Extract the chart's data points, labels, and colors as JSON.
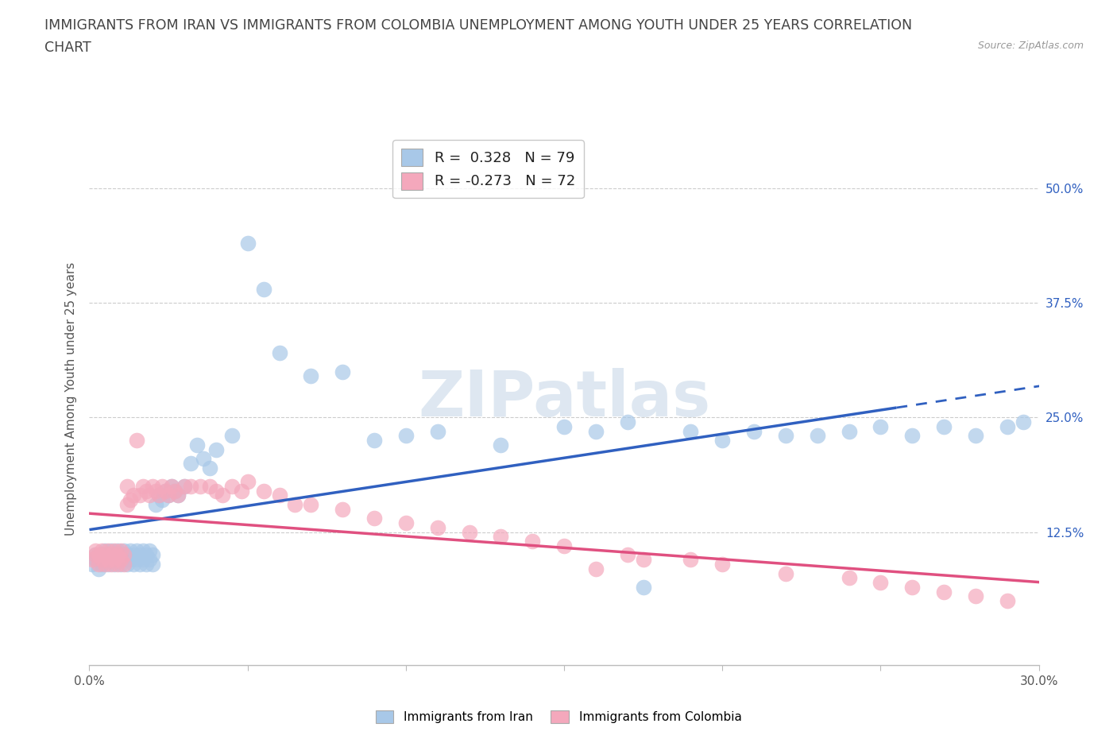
{
  "title_line1": "IMMIGRANTS FROM IRAN VS IMMIGRANTS FROM COLOMBIA UNEMPLOYMENT AMONG YOUTH UNDER 25 YEARS CORRELATION",
  "title_line2": "CHART",
  "source": "Source: ZipAtlas.com",
  "ylabel": "Unemployment Among Youth under 25 years",
  "yticks": [
    "12.5%",
    "25.0%",
    "37.5%",
    "50.0%"
  ],
  "ytick_vals": [
    0.125,
    0.25,
    0.375,
    0.5
  ],
  "xlim": [
    0.0,
    0.3
  ],
  "ylim": [
    -0.02,
    0.56
  ],
  "iran_R": 0.328,
  "iran_N": 79,
  "colombia_R": -0.273,
  "colombia_N": 72,
  "iran_color": "#A8C8E8",
  "colombia_color": "#F4A8BC",
  "iran_line_color": "#3060C0",
  "colombia_line_color": "#E05080",
  "background_color": "#FFFFFF",
  "watermark": "ZIPatlas",
  "title_color": "#444444",
  "title_fontsize": 12.5,
  "label_fontsize": 11,
  "iran_scatter_x": [
    0.001,
    0.002,
    0.002,
    0.003,
    0.003,
    0.004,
    0.004,
    0.005,
    0.005,
    0.006,
    0.006,
    0.007,
    0.007,
    0.008,
    0.008,
    0.009,
    0.009,
    0.01,
    0.01,
    0.011,
    0.011,
    0.012,
    0.012,
    0.013,
    0.013,
    0.014,
    0.014,
    0.015,
    0.015,
    0.016,
    0.016,
    0.017,
    0.017,
    0.018,
    0.018,
    0.019,
    0.019,
    0.02,
    0.02,
    0.021,
    0.022,
    0.023,
    0.024,
    0.025,
    0.026,
    0.027,
    0.028,
    0.03,
    0.032,
    0.034,
    0.036,
    0.038,
    0.04,
    0.045,
    0.05,
    0.055,
    0.06,
    0.07,
    0.08,
    0.09,
    0.1,
    0.11,
    0.13,
    0.15,
    0.17,
    0.19,
    0.21,
    0.23,
    0.24,
    0.25,
    0.26,
    0.27,
    0.28,
    0.29,
    0.295,
    0.2,
    0.22,
    0.16,
    0.175
  ],
  "iran_scatter_y": [
    0.09,
    0.095,
    0.1,
    0.085,
    0.095,
    0.09,
    0.1,
    0.095,
    0.105,
    0.09,
    0.1,
    0.095,
    0.105,
    0.09,
    0.1,
    0.095,
    0.105,
    0.09,
    0.1,
    0.095,
    0.105,
    0.09,
    0.1,
    0.095,
    0.105,
    0.09,
    0.1,
    0.095,
    0.105,
    0.09,
    0.1,
    0.095,
    0.105,
    0.09,
    0.1,
    0.095,
    0.105,
    0.09,
    0.1,
    0.155,
    0.165,
    0.16,
    0.17,
    0.165,
    0.175,
    0.17,
    0.165,
    0.175,
    0.2,
    0.22,
    0.205,
    0.195,
    0.215,
    0.23,
    0.44,
    0.39,
    0.32,
    0.295,
    0.3,
    0.225,
    0.23,
    0.235,
    0.22,
    0.24,
    0.245,
    0.235,
    0.235,
    0.23,
    0.235,
    0.24,
    0.23,
    0.24,
    0.23,
    0.24,
    0.245,
    0.225,
    0.23,
    0.235,
    0.065
  ],
  "colombia_scatter_x": [
    0.001,
    0.002,
    0.002,
    0.003,
    0.003,
    0.004,
    0.004,
    0.005,
    0.005,
    0.006,
    0.006,
    0.007,
    0.007,
    0.008,
    0.008,
    0.009,
    0.009,
    0.01,
    0.01,
    0.011,
    0.011,
    0.012,
    0.012,
    0.013,
    0.014,
    0.015,
    0.016,
    0.017,
    0.018,
    0.019,
    0.02,
    0.021,
    0.022,
    0.023,
    0.024,
    0.025,
    0.026,
    0.027,
    0.028,
    0.03,
    0.032,
    0.035,
    0.038,
    0.04,
    0.042,
    0.045,
    0.048,
    0.05,
    0.055,
    0.06,
    0.065,
    0.07,
    0.08,
    0.09,
    0.1,
    0.11,
    0.12,
    0.13,
    0.14,
    0.15,
    0.17,
    0.19,
    0.2,
    0.22,
    0.24,
    0.25,
    0.26,
    0.27,
    0.28,
    0.29,
    0.175,
    0.16
  ],
  "colombia_scatter_y": [
    0.095,
    0.1,
    0.105,
    0.09,
    0.1,
    0.095,
    0.105,
    0.09,
    0.1,
    0.095,
    0.105,
    0.09,
    0.1,
    0.095,
    0.105,
    0.09,
    0.1,
    0.095,
    0.105,
    0.09,
    0.1,
    0.175,
    0.155,
    0.16,
    0.165,
    0.225,
    0.165,
    0.175,
    0.17,
    0.165,
    0.175,
    0.17,
    0.165,
    0.175,
    0.17,
    0.165,
    0.175,
    0.17,
    0.165,
    0.175,
    0.175,
    0.175,
    0.175,
    0.17,
    0.165,
    0.175,
    0.17,
    0.18,
    0.17,
    0.165,
    0.155,
    0.155,
    0.15,
    0.14,
    0.135,
    0.13,
    0.125,
    0.12,
    0.115,
    0.11,
    0.1,
    0.095,
    0.09,
    0.08,
    0.075,
    0.07,
    0.065,
    0.06,
    0.055,
    0.05,
    0.095,
    0.085
  ]
}
